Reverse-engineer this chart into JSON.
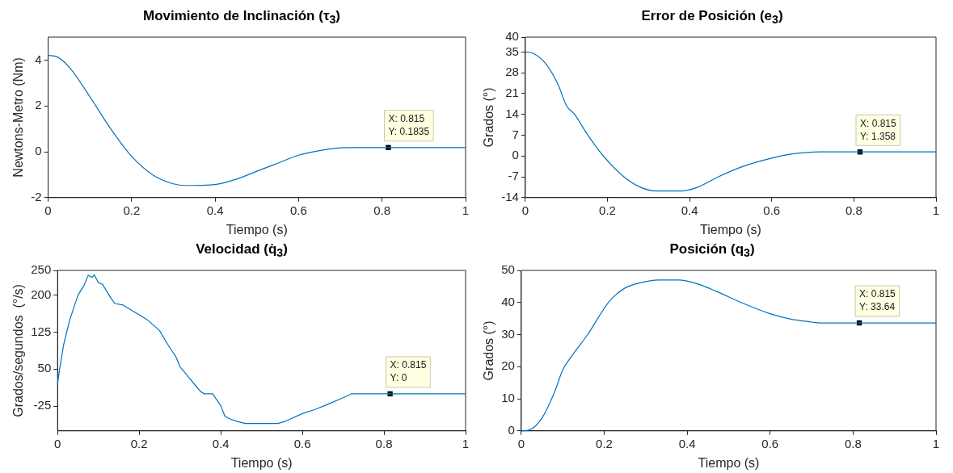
{
  "chart_data": [
    {
      "type": "line",
      "title": "Movimiento de Inclinación (τ$_{3}$)",
      "xlabel": "Tiempo (s)",
      "ylabel": "Newtons-Metro (Nm)",
      "xlim": [
        0,
        1
      ],
      "xticks": [
        0,
        0.2,
        0.4,
        0.6,
        0.8,
        1
      ],
      "ylim": [
        -2,
        5
      ],
      "yticks": [
        -2,
        0,
        2,
        4
      ],
      "x": [
        0,
        0.02,
        0.05,
        0.1,
        0.15,
        0.2,
        0.25,
        0.3,
        0.33,
        0.4,
        0.45,
        0.5,
        0.55,
        0.6,
        0.65,
        0.7,
        0.72,
        0.815,
        1
      ],
      "series": [
        {
          "color": "#0072bd",
          "values": [
            4.2,
            4.15,
            3.7,
            2.4,
            1.0,
            -0.2,
            -1.0,
            -1.4,
            -1.47,
            -1.43,
            -1.2,
            -0.85,
            -0.5,
            -0.15,
            0.05,
            0.17,
            0.18,
            0.18,
            0.18
          ]
        },
        {
          "type": "scatter",
          "marker": "square",
          "color": "#000000",
          "values": [
            null,
            null,
            null,
            null,
            null,
            null,
            null,
            null,
            null,
            null,
            null,
            null,
            null,
            null,
            null,
            null,
            null,
            0.1835,
            null
          ]
        }
      ],
      "annotations": [
        "X: 0.815\nY: 0.1835"
      ]
    },
    {
      "type": "line",
      "title": "Error de Posición (e$_{3}$)",
      "xlabel": "Tiempo (s)",
      "ylabel": "Grados (°)",
      "xlim": [
        0,
        1
      ],
      "xticks": [
        0,
        0.2,
        0.4,
        0.6,
        0.8,
        1
      ],
      "ylim": [
        -14,
        40
      ],
      "yticks": [
        -14,
        -7,
        0,
        7,
        14,
        21,
        28,
        35,
        40
      ],
      "x": [
        0,
        0.02,
        0.05,
        0.08,
        0.1,
        0.12,
        0.15,
        0.19,
        0.24,
        0.28,
        0.32,
        0.38,
        0.42,
        0.47,
        0.53,
        0.6,
        0.65,
        0.7,
        0.72,
        0.815,
        1
      ],
      "series": [
        {
          "color": "#0072bd",
          "values": [
            35,
            34.5,
            31,
            24,
            17,
            14,
            7.5,
            0,
            -7,
            -10.5,
            -11.8,
            -11.8,
            -10.5,
            -7,
            -3.5,
            -0.7,
            0.7,
            1.3,
            1.4,
            1.4,
            1.4
          ]
        },
        {
          "type": "scatter",
          "marker": "square",
          "color": "#000000",
          "values": [
            null,
            null,
            null,
            null,
            null,
            null,
            null,
            null,
            null,
            null,
            null,
            null,
            null,
            null,
            null,
            null,
            null,
            null,
            null,
            1.358,
            null
          ]
        }
      ],
      "annotations": [
        "X: 0.815\nY: 1.358"
      ]
    },
    {
      "type": "line",
      "title": "Velocidad (q̇$_{3}$)",
      "xlabel": "Tiempo (s)",
      "ylabel": "Grados/segundos  (°/s)",
      "xlim": [
        0,
        1
      ],
      "xticks": [
        0,
        0.2,
        0.4,
        0.6,
        0.8,
        1
      ],
      "ylim": [
        -75,
        250
      ],
      "yticks": [
        -25,
        50,
        125,
        200,
        250
      ],
      "x": [
        0,
        0.005,
        0.015,
        0.03,
        0.05,
        0.065,
        0.075,
        0.085,
        0.09,
        0.1,
        0.11,
        0.13,
        0.14,
        0.16,
        0.18,
        0.2,
        0.22,
        0.25,
        0.27,
        0.29,
        0.3,
        0.32,
        0.34,
        0.35,
        0.36,
        0.38,
        0.4,
        0.41,
        0.42,
        0.44,
        0.46,
        0.5,
        0.54,
        0.56,
        0.6,
        0.63,
        0.66,
        0.7,
        0.72,
        0.815,
        1
      ],
      "series": [
        {
          "color": "#0072bd",
          "values": [
            21,
            50,
            100,
            150,
            200,
            220,
            240,
            236,
            241,
            225,
            222,
            195,
            183,
            180,
            170,
            160,
            150,
            128,
            100,
            75,
            55,
            35,
            15,
            5,
            0,
            0,
            -24,
            -45,
            -50,
            -56,
            -60,
            -60,
            -60,
            -55,
            -40,
            -32,
            -22,
            -8,
            0,
            0,
            0
          ]
        },
        {
          "type": "scatter",
          "marker": "square",
          "color": "#000000",
          "values": [
            null,
            null,
            null,
            null,
            null,
            null,
            null,
            null,
            null,
            null,
            null,
            null,
            null,
            null,
            null,
            null,
            null,
            null,
            null,
            null,
            null,
            null,
            null,
            null,
            null,
            null,
            null,
            null,
            null,
            null,
            null,
            null,
            null,
            null,
            null,
            null,
            null,
            null,
            null,
            0,
            null
          ]
        }
      ],
      "annotations": [
        "X: 0.815\nY: 0"
      ]
    },
    {
      "type": "line",
      "title": "Posición (q$_{3}$)",
      "xlabel": "Tiempo (s)",
      "ylabel": "Grados (°)",
      "xlim": [
        0,
        1
      ],
      "xticks": [
        0,
        0.2,
        0.4,
        0.6,
        0.8,
        1
      ],
      "ylim": [
        0,
        50
      ],
      "yticks": [
        0,
        10,
        20,
        30,
        40,
        50
      ],
      "x": [
        0,
        0.02,
        0.05,
        0.08,
        0.1,
        0.12,
        0.16,
        0.21,
        0.25,
        0.3,
        0.33,
        0.38,
        0.42,
        0.47,
        0.53,
        0.6,
        0.65,
        0.7,
        0.72,
        0.815,
        1
      ],
      "series": [
        {
          "color": "#0072bd",
          "values": [
            0,
            0.3,
            4,
            12,
            19,
            23,
            30,
            40,
            44.5,
            46.5,
            47,
            47,
            46,
            43.5,
            40,
            36.5,
            34.8,
            33.9,
            33.6,
            33.6,
            33.6
          ]
        },
        {
          "type": "scatter",
          "marker": "square",
          "color": "#000000",
          "values": [
            null,
            null,
            null,
            null,
            null,
            null,
            null,
            null,
            null,
            null,
            null,
            null,
            null,
            null,
            null,
            null,
            null,
            null,
            null,
            33.64,
            null
          ]
        }
      ],
      "annotations": [
        "X: 0.815\nY: 33.64"
      ]
    }
  ]
}
